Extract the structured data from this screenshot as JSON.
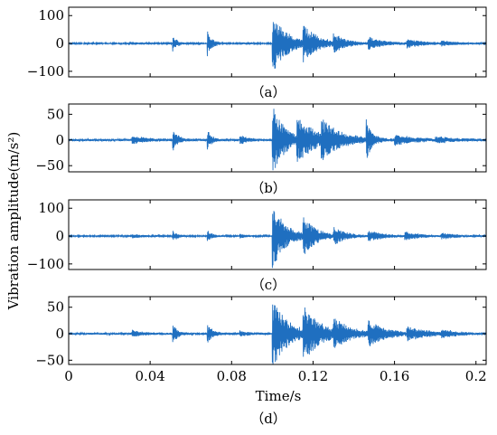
{
  "figure": {
    "ylabel": "Vibration amplitude(m/s²)",
    "xlabel": "Time/s"
  },
  "colors": {
    "signal": "#1f6fc0",
    "axis": "#000000"
  },
  "chart_data": [
    {
      "type": "line",
      "panel_label": "（a）",
      "x_range": [
        0,
        0.205
      ],
      "ylim": [
        -120,
        130
      ],
      "yticks": [
        100,
        0,
        -100
      ],
      "ytick_labels": [
        "100",
        "0",
        "−100"
      ],
      "xticks": [
        0,
        0.04,
        0.08,
        0.12,
        0.16,
        0.2
      ],
      "xtick_labels": [],
      "grid": false,
      "bursts": [
        {
          "t": 0.031,
          "amp": 5,
          "decay": 0.006
        },
        {
          "t": 0.051,
          "amp": 30,
          "decay": 0.0022
        },
        {
          "t": 0.068,
          "amp": 45,
          "decay": 0.0025
        },
        {
          "t": 0.084,
          "amp": 4,
          "decay": 0.004
        },
        {
          "t": 0.1,
          "amp": 108,
          "decay": 0.0075
        },
        {
          "t": 0.115,
          "amp": 60,
          "decay": 0.007
        },
        {
          "t": 0.13,
          "amp": 30,
          "decay": 0.006
        },
        {
          "t": 0.147,
          "amp": 22,
          "decay": 0.008
        },
        {
          "t": 0.166,
          "amp": 15,
          "decay": 0.009
        },
        {
          "t": 0.183,
          "amp": 8,
          "decay": 0.008
        }
      ],
      "noise": 2.5
    },
    {
      "type": "line",
      "panel_label": "（b）",
      "x_range": [
        0,
        0.205
      ],
      "ylim": [
        -62,
        70
      ],
      "yticks": [
        50,
        0,
        -50
      ],
      "ytick_labels": [
        "50",
        "0",
        "−50"
      ],
      "xticks": [
        0,
        0.04,
        0.08,
        0.12,
        0.16,
        0.2
      ],
      "xtick_labels": [],
      "grid": false,
      "bursts": [
        {
          "t": 0.031,
          "amp": 8,
          "decay": 0.007
        },
        {
          "t": 0.051,
          "amp": 22,
          "decay": 0.0025
        },
        {
          "t": 0.068,
          "amp": 20,
          "decay": 0.0022
        },
        {
          "t": 0.084,
          "amp": 9,
          "decay": 0.004
        },
        {
          "t": 0.1,
          "amp": 70,
          "decay": 0.006
        },
        {
          "t": 0.112,
          "amp": 40,
          "decay": 0.01
        },
        {
          "t": 0.124,
          "amp": 30,
          "decay": 0.009
        },
        {
          "t": 0.146,
          "amp": 42,
          "decay": 0.0025
        },
        {
          "t": 0.16,
          "amp": 10,
          "decay": 0.01
        },
        {
          "t": 0.18,
          "amp": 5,
          "decay": 0.01
        }
      ],
      "noise": 2.2
    },
    {
      "type": "line",
      "panel_label": "（c）",
      "x_range": [
        0,
        0.205
      ],
      "ylim": [
        -120,
        130
      ],
      "yticks": [
        100,
        0,
        -100
      ],
      "ytick_labels": [
        "100",
        "0",
        "−100"
      ],
      "xticks": [
        0,
        0.04,
        0.08,
        0.12,
        0.16,
        0.2
      ],
      "xtick_labels": [],
      "grid": false,
      "bursts": [
        {
          "t": 0.031,
          "amp": 8,
          "decay": 0.006
        },
        {
          "t": 0.051,
          "amp": 22,
          "decay": 0.0022
        },
        {
          "t": 0.068,
          "amp": 22,
          "decay": 0.0025
        },
        {
          "t": 0.084,
          "amp": 8,
          "decay": 0.004
        },
        {
          "t": 0.1,
          "amp": 118,
          "decay": 0.0065
        },
        {
          "t": 0.115,
          "amp": 70,
          "decay": 0.006
        },
        {
          "t": 0.13,
          "amp": 28,
          "decay": 0.006
        },
        {
          "t": 0.147,
          "amp": 18,
          "decay": 0.008
        },
        {
          "t": 0.165,
          "amp": 14,
          "decay": 0.008
        },
        {
          "t": 0.183,
          "amp": 10,
          "decay": 0.008
        }
      ],
      "noise": 2.5
    },
    {
      "type": "line",
      "panel_label": "（d）",
      "x_range": [
        0,
        0.205
      ],
      "ylim": [
        -58,
        70
      ],
      "yticks": [
        50,
        0,
        -50
      ],
      "ytick_labels": [
        "50",
        "0",
        "−50"
      ],
      "xticks": [
        0,
        0.04,
        0.08,
        0.12,
        0.16,
        0.2
      ],
      "xtick_labels": [
        "0",
        "0.04",
        "0.08",
        "0.12",
        "0.16",
        "0.2"
      ],
      "grid": false,
      "bursts": [
        {
          "t": 0.031,
          "amp": 6,
          "decay": 0.006
        },
        {
          "t": 0.051,
          "amp": 20,
          "decay": 0.0022
        },
        {
          "t": 0.068,
          "amp": 18,
          "decay": 0.0028
        },
        {
          "t": 0.084,
          "amp": 6,
          "decay": 0.004
        },
        {
          "t": 0.1,
          "amp": 66,
          "decay": 0.0075
        },
        {
          "t": 0.115,
          "amp": 50,
          "decay": 0.008
        },
        {
          "t": 0.13,
          "amp": 24,
          "decay": 0.008
        },
        {
          "t": 0.147,
          "amp": 22,
          "decay": 0.009
        },
        {
          "t": 0.166,
          "amp": 12,
          "decay": 0.009
        },
        {
          "t": 0.183,
          "amp": 6,
          "decay": 0.008
        }
      ],
      "noise": 2.0
    }
  ]
}
